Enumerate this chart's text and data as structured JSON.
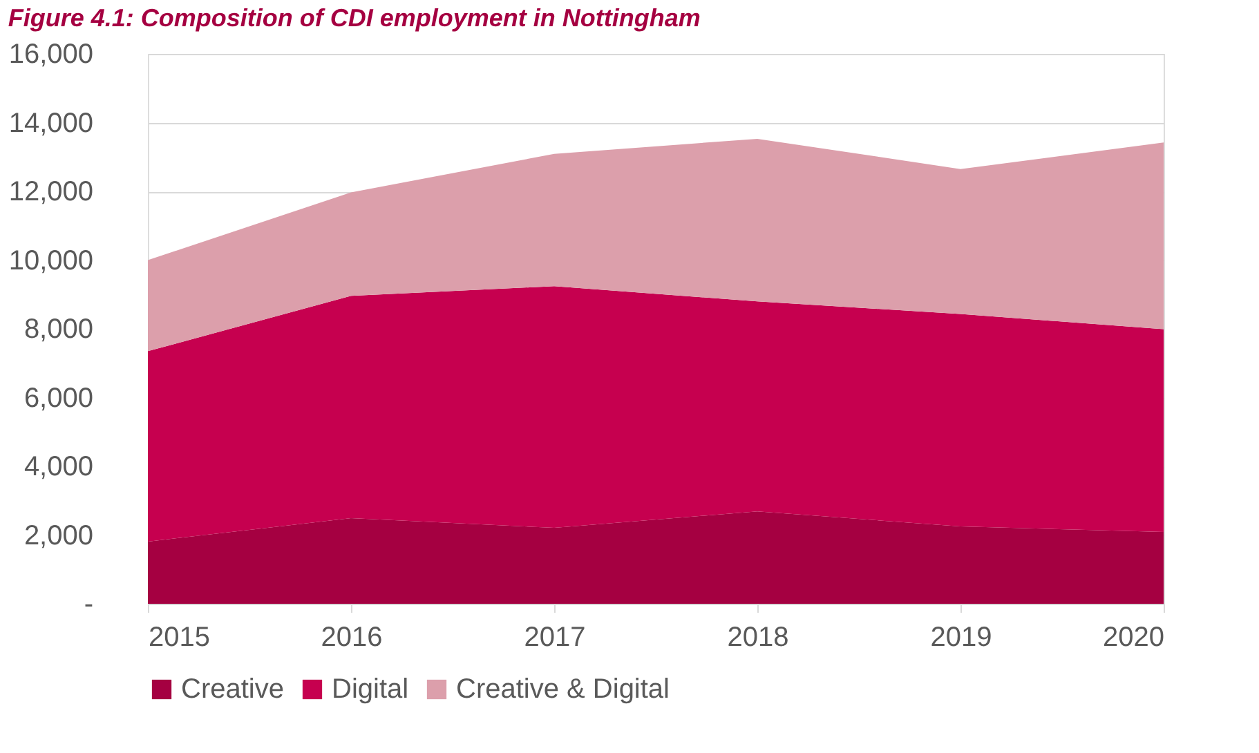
{
  "chart_data": {
    "type": "area",
    "title": "Figure 4.1: Composition of CDI employment in Nottingham",
    "stacked": true,
    "x": [
      2015,
      2016,
      2017,
      2018,
      2019,
      2020
    ],
    "xlim": [
      2015,
      2020
    ],
    "xticks": [
      2015,
      2016,
      2017,
      2018,
      2019,
      2020
    ],
    "ylim": [
      0,
      16000
    ],
    "yticks": [
      {
        "value": 0,
        "label": "-"
      },
      {
        "value": 2000,
        "label": "2,000"
      },
      {
        "value": 4000,
        "label": "4,000"
      },
      {
        "value": 6000,
        "label": "6,000"
      },
      {
        "value": 8000,
        "label": "8,000"
      },
      {
        "value": 10000,
        "label": "10,000"
      },
      {
        "value": 12000,
        "label": "12,000"
      },
      {
        "value": 14000,
        "label": "14,000"
      },
      {
        "value": 16000,
        "label": "16,000"
      }
    ],
    "series": [
      {
        "name": "Creative",
        "color": "#a50041",
        "values": [
          1810,
          2490,
          2210,
          2690,
          2250,
          2090
        ]
      },
      {
        "name": "Digital",
        "color": "#c6004f",
        "values": [
          5540,
          6470,
          7030,
          6110,
          6180,
          5900
        ]
      },
      {
        "name": "Creative & Digital",
        "color": "#dc9fab",
        "values": [
          2650,
          3010,
          3850,
          4730,
          4220,
          5430
        ]
      }
    ],
    "grid": "y",
    "legend": "bottom"
  }
}
